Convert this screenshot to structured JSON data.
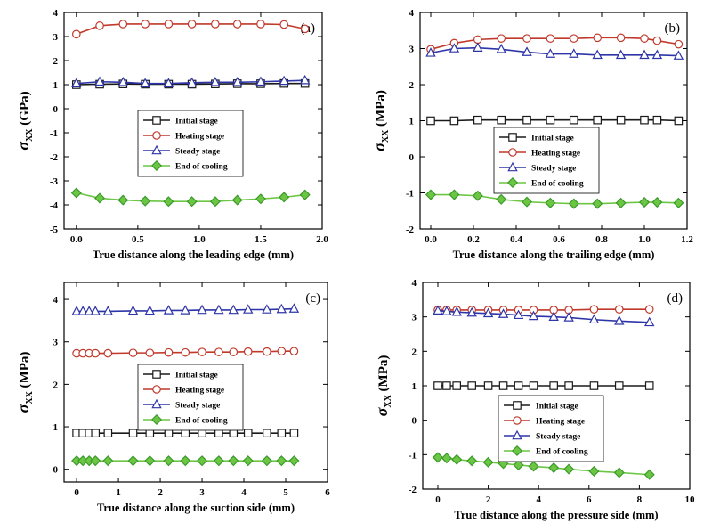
{
  "colors": {
    "initial": "#1a1a1a",
    "heating": "#c0392b",
    "steady": "#2e35a8",
    "cooling": "#6cc644"
  },
  "markers": {
    "initial": "square",
    "heating": "circle",
    "steady": "triangle",
    "cooling": "diamond"
  },
  "chart_data": [
    {
      "type": "line",
      "panel_label": "(a)",
      "xlabel": "True distance along the leading edge (mm)",
      "ylabel_symbol": "σ",
      "ylabel_sub": "XX",
      "ylabel_unit": " (GPa)",
      "xlim": [
        -0.1,
        2.0
      ],
      "ylim": [
        -5,
        4
      ],
      "xticks": [
        0.0,
        0.5,
        1.0,
        1.5,
        2.0
      ],
      "xtick_labels": [
        "0.0",
        "0.5",
        "1.0",
        "1.5",
        "2.0"
      ],
      "yticks": [
        -5,
        -4,
        -3,
        -2,
        -1,
        0,
        1,
        2,
        3,
        4
      ],
      "ytick_labels": [
        "-5",
        "-4",
        "-3",
        "-2",
        "-1",
        "0",
        "1",
        "2",
        "3",
        "4"
      ],
      "legend_position": "center-right",
      "series": [
        {
          "name": "Initial stage",
          "key": "initial",
          "x": [
            0.0,
            0.19,
            0.38,
            0.56,
            0.75,
            0.94,
            1.13,
            1.31,
            1.5,
            1.69,
            1.86
          ],
          "y": [
            1.0,
            1.02,
            1.03,
            1.02,
            1.02,
            1.02,
            1.03,
            1.04,
            1.04,
            1.05,
            1.05
          ]
        },
        {
          "name": "Heating stage",
          "key": "heating",
          "x": [
            0.0,
            0.19,
            0.38,
            0.56,
            0.75,
            0.94,
            1.13,
            1.31,
            1.5,
            1.69,
            1.86
          ],
          "y": [
            3.1,
            3.45,
            3.52,
            3.52,
            3.52,
            3.52,
            3.52,
            3.52,
            3.52,
            3.5,
            3.32
          ]
        },
        {
          "name": "Steady stage",
          "key": "steady",
          "x": [
            0.0,
            0.19,
            0.38,
            0.56,
            0.75,
            0.94,
            1.13,
            1.31,
            1.5,
            1.69,
            1.86
          ],
          "y": [
            1.05,
            1.12,
            1.1,
            1.05,
            1.05,
            1.08,
            1.1,
            1.1,
            1.12,
            1.15,
            1.18
          ]
        },
        {
          "name": "End of cooling",
          "key": "cooling",
          "x": [
            0.0,
            0.19,
            0.38,
            0.56,
            0.75,
            0.94,
            1.13,
            1.31,
            1.5,
            1.69,
            1.86
          ],
          "y": [
            -3.5,
            -3.72,
            -3.8,
            -3.84,
            -3.86,
            -3.86,
            -3.86,
            -3.8,
            -3.75,
            -3.68,
            -3.58
          ]
        }
      ]
    },
    {
      "type": "line",
      "panel_label": "(b)",
      "xlabel": "True distance along the trailing edge (mm)",
      "ylabel_symbol": "σ",
      "ylabel_sub": "XX",
      "ylabel_unit": " (MPa)",
      "xlim": [
        -0.05,
        1.2
      ],
      "ylim": [
        -2,
        4
      ],
      "xticks": [
        0.0,
        0.2,
        0.4,
        0.6,
        0.8,
        1.0,
        1.2
      ],
      "xtick_labels": [
        "0.0",
        "0.2",
        "0.4",
        "0.6",
        "0.8",
        "1.0",
        "1.2"
      ],
      "yticks": [
        -2,
        -1,
        0,
        1,
        2,
        3,
        4
      ],
      "ytick_labels": [
        "-2",
        "-1",
        "0",
        "1",
        "2",
        "3",
        "4"
      ],
      "legend_position": "center-right",
      "series": [
        {
          "name": "Initial stage",
          "key": "initial",
          "x": [
            0.0,
            0.11,
            0.22,
            0.33,
            0.45,
            0.56,
            0.67,
            0.78,
            0.89,
            1.0,
            1.06,
            1.16
          ],
          "y": [
            1.0,
            1.0,
            1.02,
            1.02,
            1.02,
            1.02,
            1.02,
            1.02,
            1.02,
            1.02,
            1.02,
            1.0
          ]
        },
        {
          "name": "Heating stage",
          "key": "heating",
          "x": [
            0.0,
            0.11,
            0.22,
            0.33,
            0.45,
            0.56,
            0.67,
            0.78,
            0.89,
            1.0,
            1.06,
            1.16
          ],
          "y": [
            2.98,
            3.15,
            3.25,
            3.28,
            3.28,
            3.28,
            3.28,
            3.3,
            3.3,
            3.28,
            3.22,
            3.12
          ]
        },
        {
          "name": "Steady stage",
          "key": "steady",
          "x": [
            0.0,
            0.11,
            0.22,
            0.33,
            0.45,
            0.56,
            0.67,
            0.78,
            0.89,
            1.0,
            1.06,
            1.16
          ],
          "y": [
            2.88,
            3.0,
            3.02,
            2.98,
            2.9,
            2.85,
            2.85,
            2.82,
            2.82,
            2.82,
            2.82,
            2.8
          ]
        },
        {
          "name": "End of cooling",
          "key": "cooling",
          "x": [
            0.0,
            0.11,
            0.22,
            0.33,
            0.45,
            0.56,
            0.67,
            0.78,
            0.89,
            1.0,
            1.06,
            1.16
          ],
          "y": [
            -1.05,
            -1.05,
            -1.08,
            -1.18,
            -1.25,
            -1.28,
            -1.3,
            -1.3,
            -1.28,
            -1.26,
            -1.26,
            -1.28
          ]
        }
      ]
    },
    {
      "type": "line",
      "panel_label": "(c)",
      "xlabel": "True distance along the suction side (mm)",
      "ylabel_symbol": "σ",
      "ylabel_sub": "XX",
      "ylabel_unit": " (MPa)",
      "xlim": [
        -0.3,
        6.0
      ],
      "ylim": [
        -0.3,
        4.4
      ],
      "xticks": [
        0,
        1,
        2,
        3,
        4,
        5,
        6
      ],
      "xtick_labels": [
        "0",
        "1",
        "2",
        "3",
        "4",
        "5",
        "6"
      ],
      "yticks": [
        0,
        1,
        2,
        3,
        4
      ],
      "ytick_labels": [
        "0",
        "1",
        "2",
        "3",
        "4"
      ],
      "legend_position": "center-right",
      "series": [
        {
          "name": "Initial stage",
          "key": "initial",
          "x": [
            0.0,
            0.15,
            0.3,
            0.45,
            0.75,
            1.35,
            1.75,
            2.2,
            2.6,
            3.0,
            3.4,
            3.75,
            4.1,
            4.55,
            4.9,
            5.2
          ],
          "y": [
            0.85,
            0.85,
            0.85,
            0.85,
            0.85,
            0.85,
            0.85,
            0.85,
            0.85,
            0.85,
            0.85,
            0.85,
            0.85,
            0.85,
            0.85,
            0.85
          ]
        },
        {
          "name": "Heating stage",
          "key": "heating",
          "x": [
            0.0,
            0.15,
            0.3,
            0.45,
            0.75,
            1.35,
            1.75,
            2.2,
            2.6,
            3.0,
            3.4,
            3.75,
            4.1,
            4.55,
            4.9,
            5.2
          ],
          "y": [
            2.73,
            2.73,
            2.73,
            2.73,
            2.73,
            2.74,
            2.74,
            2.75,
            2.75,
            2.76,
            2.76,
            2.76,
            2.77,
            2.77,
            2.78,
            2.78
          ]
        },
        {
          "name": "Steady stage",
          "key": "steady",
          "x": [
            0.0,
            0.15,
            0.3,
            0.45,
            0.75,
            1.35,
            1.75,
            2.2,
            2.6,
            3.0,
            3.4,
            3.75,
            4.1,
            4.55,
            4.9,
            5.2
          ],
          "y": [
            3.72,
            3.72,
            3.72,
            3.72,
            3.72,
            3.73,
            3.73,
            3.74,
            3.74,
            3.75,
            3.75,
            3.75,
            3.76,
            3.76,
            3.77,
            3.78
          ]
        },
        {
          "name": "End of cooling",
          "key": "cooling",
          "x": [
            0.0,
            0.15,
            0.3,
            0.45,
            0.75,
            1.35,
            1.75,
            2.2,
            2.6,
            3.0,
            3.4,
            3.75,
            4.1,
            4.55,
            4.9,
            5.2
          ],
          "y": [
            0.2,
            0.2,
            0.2,
            0.2,
            0.2,
            0.2,
            0.2,
            0.2,
            0.2,
            0.2,
            0.2,
            0.2,
            0.2,
            0.2,
            0.2,
            0.2
          ]
        }
      ]
    },
    {
      "type": "line",
      "panel_label": "(d)",
      "xlabel": "True distance along the pressure side (mm)",
      "ylabel_symbol": "σ",
      "ylabel_sub": "XX",
      "ylabel_unit": " (MPa)",
      "xlim": [
        -0.6,
        10.0
      ],
      "ylim": [
        -2,
        4
      ],
      "xticks": [
        0,
        2,
        4,
        6,
        8,
        10
      ],
      "xtick_labels": [
        "0",
        "2",
        "4",
        "6",
        "8",
        "10"
      ],
      "yticks": [
        -2,
        -1,
        0,
        1,
        2,
        3,
        4
      ],
      "ytick_labels": [
        "-2",
        "-1",
        "0",
        "1",
        "2",
        "3",
        "4"
      ],
      "legend_position": "center-right",
      "series": [
        {
          "name": "Initial stage",
          "key": "initial",
          "x": [
            0.0,
            0.35,
            0.75,
            1.35,
            2.0,
            2.6,
            3.2,
            3.8,
            4.6,
            5.2,
            6.2,
            7.2,
            8.4
          ],
          "y": [
            1.0,
            1.0,
            1.0,
            1.0,
            1.0,
            1.0,
            1.0,
            1.0,
            1.0,
            1.0,
            1.0,
            1.0,
            1.0
          ]
        },
        {
          "name": "Heating stage",
          "key": "heating",
          "x": [
            0.0,
            0.35,
            0.75,
            1.35,
            2.0,
            2.6,
            3.2,
            3.8,
            4.6,
            5.2,
            6.2,
            7.2,
            8.4
          ],
          "y": [
            3.2,
            3.2,
            3.2,
            3.2,
            3.2,
            3.2,
            3.2,
            3.2,
            3.2,
            3.2,
            3.22,
            3.22,
            3.22
          ]
        },
        {
          "name": "Steady stage",
          "key": "steady",
          "x": [
            0.0,
            0.35,
            0.75,
            1.35,
            2.0,
            2.6,
            3.2,
            3.8,
            4.6,
            5.2,
            6.2,
            7.2,
            8.4
          ],
          "y": [
            3.18,
            3.16,
            3.14,
            3.12,
            3.1,
            3.08,
            3.05,
            3.02,
            3.0,
            2.98,
            2.92,
            2.88,
            2.84
          ]
        },
        {
          "name": "End of cooling",
          "key": "cooling",
          "x": [
            0.0,
            0.35,
            0.75,
            1.35,
            2.0,
            2.6,
            3.2,
            3.8,
            4.6,
            5.2,
            6.2,
            7.2,
            8.4
          ],
          "y": [
            -1.08,
            -1.1,
            -1.14,
            -1.18,
            -1.22,
            -1.26,
            -1.3,
            -1.34,
            -1.38,
            -1.42,
            -1.48,
            -1.52,
            -1.58
          ]
        }
      ]
    }
  ]
}
